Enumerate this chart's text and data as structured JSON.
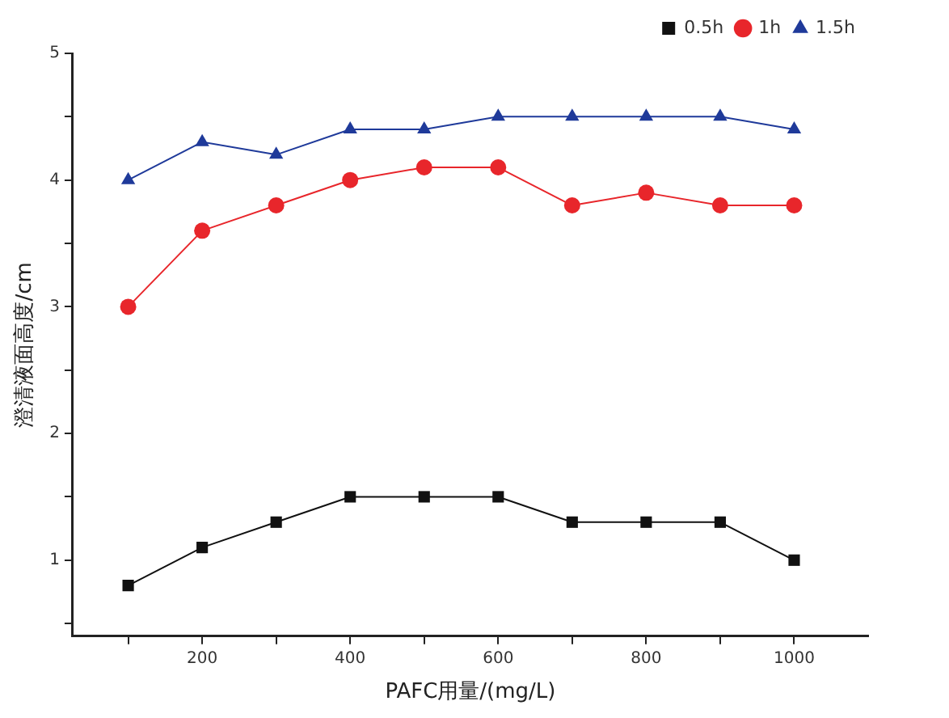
{
  "chart_data": {
    "type": "line",
    "xlabel": "PAFC用量/(mg/L)",
    "ylabel": "澄清液面高度/cm",
    "x": [
      100,
      200,
      300,
      400,
      500,
      600,
      700,
      800,
      900,
      1000
    ],
    "series": [
      {
        "name": "0.5h",
        "color": "#111111",
        "marker": "square",
        "values": [
          0.8,
          1.1,
          1.3,
          1.5,
          1.5,
          1.5,
          1.3,
          1.3,
          1.3,
          1.0
        ]
      },
      {
        "name": "1h",
        "color": "#e8262b",
        "marker": "circle",
        "values": [
          3.0,
          3.6,
          3.8,
          4.0,
          4.1,
          4.1,
          3.8,
          3.9,
          3.8,
          3.8
        ]
      },
      {
        "name": "1.5h",
        "color": "#1f3a9a",
        "marker": "triangle",
        "values": [
          4.0,
          4.3,
          4.2,
          4.4,
          4.4,
          4.5,
          4.5,
          4.5,
          4.5,
          4.4
        ]
      }
    ],
    "xlim": [
      25,
      1100
    ],
    "xticks": [
      {
        "value": 100,
        "label": null
      },
      200,
      {
        "value": 300,
        "label": null
      },
      400,
      {
        "value": 500,
        "label": null
      },
      600,
      {
        "value": 700,
        "label": null
      },
      800,
      {
        "value": 900,
        "label": null
      },
      1000
    ],
    "ylim": [
      0.4,
      5
    ],
    "yticks": [
      {
        "value": 0.5,
        "label": null
      },
      1,
      {
        "value": 1.5,
        "label": null
      },
      2,
      {
        "value": 2.5,
        "label": null
      },
      3,
      {
        "value": 3.5,
        "label": null
      },
      4,
      {
        "value": 4.5,
        "label": null
      },
      5
    ],
    "grid": false,
    "legend": "top right",
    "line_style": "solid"
  }
}
